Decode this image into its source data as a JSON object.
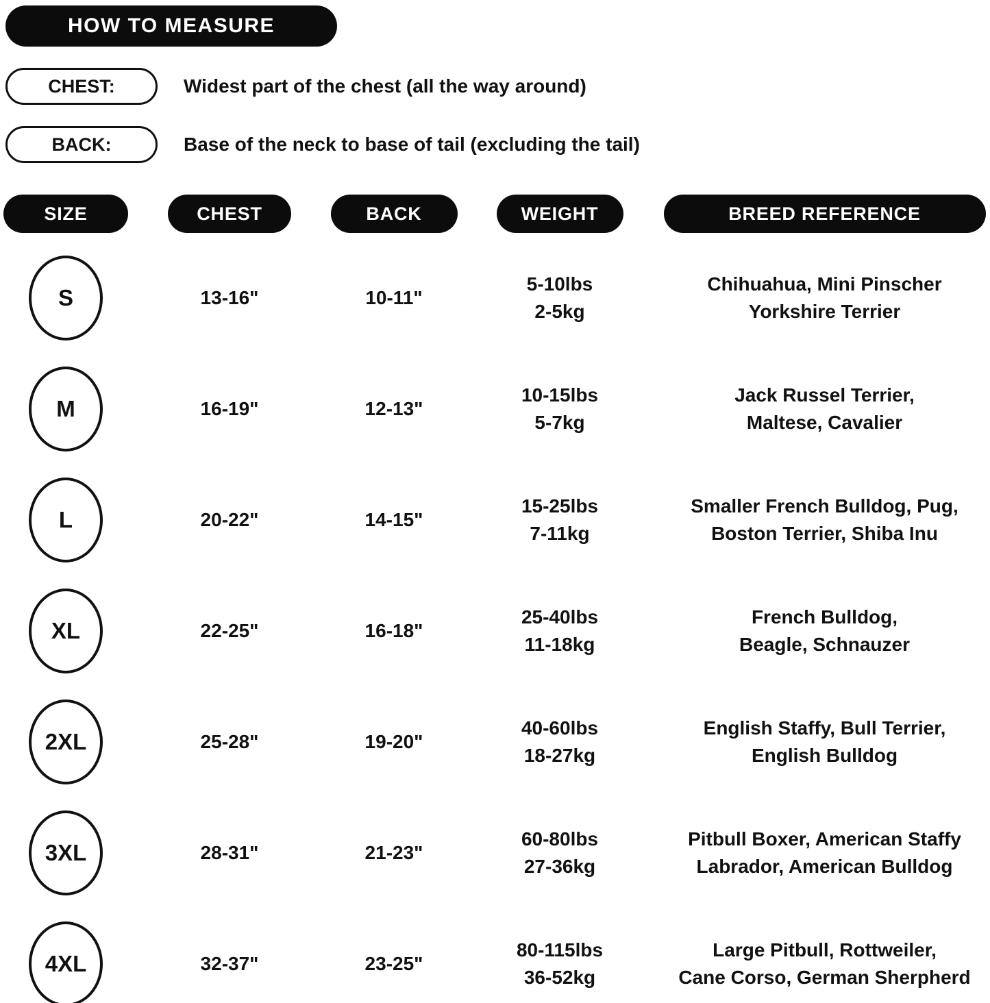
{
  "header": {
    "title": "HOW TO MEASURE",
    "measure_items": [
      {
        "label": "CHEST:",
        "description": "Widest part of the chest (all the way around)"
      },
      {
        "label": "BACK:",
        "description": "Base of the neck to base of tail (excluding the tail)"
      }
    ]
  },
  "table": {
    "columns": [
      "SIZE",
      "CHEST",
      "BACK",
      "WEIGHT",
      "BREED REFERENCE"
    ],
    "rows": [
      {
        "size": "S",
        "chest": "13-16\"",
        "back": "10-11\"",
        "weight_lbs": "5-10lbs",
        "weight_kg": "2-5kg",
        "breed_line1": "Chihuahua, Mini Pinscher",
        "breed_line2": "Yorkshire Terrier"
      },
      {
        "size": "M",
        "chest": "16-19\"",
        "back": "12-13\"",
        "weight_lbs": "10-15lbs",
        "weight_kg": "5-7kg",
        "breed_line1": "Jack Russel Terrier,",
        "breed_line2": "Maltese, Cavalier"
      },
      {
        "size": "L",
        "chest": "20-22\"",
        "back": "14-15\"",
        "weight_lbs": "15-25lbs",
        "weight_kg": "7-11kg",
        "breed_line1": "Smaller French Bulldog, Pug,",
        "breed_line2": "Boston Terrier, Shiba Inu"
      },
      {
        "size": "XL",
        "chest": "22-25\"",
        "back": "16-18\"",
        "weight_lbs": "25-40lbs",
        "weight_kg": "11-18kg",
        "breed_line1": "French Bulldog,",
        "breed_line2": "Beagle, Schnauzer"
      },
      {
        "size": "2XL",
        "chest": "25-28\"",
        "back": "19-20\"",
        "weight_lbs": "40-60lbs",
        "weight_kg": "18-27kg",
        "breed_line1": "English Staffy, Bull Terrier,",
        "breed_line2": "English Bulldog"
      },
      {
        "size": "3XL",
        "chest": "28-31\"",
        "back": "21-23\"",
        "weight_lbs": "60-80lbs",
        "weight_kg": "27-36kg",
        "breed_line1": "Pitbull Boxer, American Staffy",
        "breed_line2": "Labrador, American Bulldog"
      },
      {
        "size": "4XL",
        "chest": "32-37\"",
        "back": "23-25\"",
        "weight_lbs": "80-115lbs",
        "weight_kg": "36-52kg",
        "breed_line1": "Large Pitbull, Rottweiler,",
        "breed_line2": "Cane Corso, German Sherpherd"
      }
    ]
  },
  "colors": {
    "pill_background": "#0c0c0c",
    "pill_text": "#ffffff",
    "body_text": "#111111",
    "background": "#ffffff"
  }
}
